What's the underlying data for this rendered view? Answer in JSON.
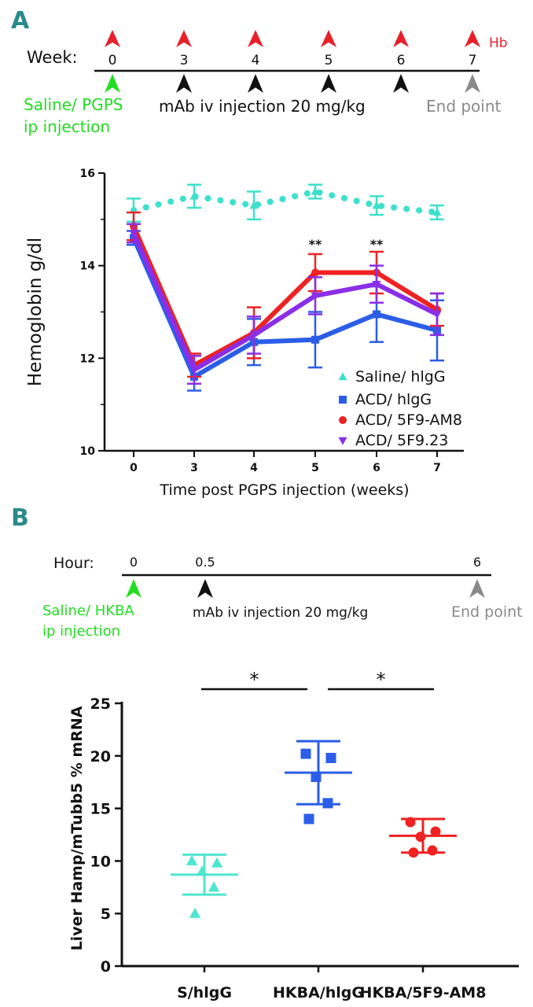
{
  "colors": {
    "panel_letter": "#2a8a8a",
    "hb_marker": "#e8202a",
    "saline": "#22dd22",
    "injection": "#111111",
    "end": "#8a8a8a",
    "saline_higg": "#3ee0cc",
    "acd_higg": "#2a5ee8",
    "acd_5f9_am8": "#ee2222",
    "acd_5f9_23": "#8a2ee8",
    "s_higg_dot": "#4fe6d0",
    "hkba_higg_dot": "#2a5ee8",
    "hkba_5f9_dot": "#ee2222"
  },
  "panel_a": {
    "letter": "A",
    "timeline": {
      "axis_label": "Week:",
      "ticks": [
        "0",
        "3",
        "4",
        "5",
        "6",
        "7"
      ],
      "hb_label": "Hb",
      "saline_label_1": "Saline/ PGPS",
      "saline_label_2": "ip injection",
      "mab_label": "mAb iv injection 20 mg/kg",
      "end_label": "End point"
    }
  },
  "panel_b": {
    "letter": "B",
    "timeline": {
      "axis_label": "Hour:",
      "ticks": [
        "0",
        "0.5",
        "6"
      ],
      "saline_label_1": "Saline/ HKBA",
      "saline_label_2": "ip injection",
      "mab_label": "mAb iv injection 20 mg/kg",
      "end_label": "End point"
    }
  },
  "chart_data": [
    {
      "type": "line",
      "title": "",
      "xlabel": "Time post PGPS injection (weeks)",
      "ylabel": "Hemoglobin g/dl",
      "x": [
        0,
        3,
        4,
        5,
        6,
        7
      ],
      "x_tick_labels": [
        "0",
        "3",
        "4",
        "5",
        "6",
        "7"
      ],
      "ylim": [
        10,
        16
      ],
      "y_ticks": [
        10,
        12,
        14,
        16
      ],
      "y_tick_labels": [
        "10",
        "12",
        "14",
        "16"
      ],
      "legend_position": "bottom-right",
      "series": [
        {
          "name": "Saline/ hIgG",
          "legend_label": "Saline/ hlgG",
          "marker": "triangle-up",
          "line": "dotted",
          "color_key": "saline_higg",
          "values": [
            15.2,
            15.5,
            15.3,
            15.6,
            15.3,
            15.15
          ],
          "errors": [
            0.25,
            0.25,
            0.3,
            0.15,
            0.2,
            0.15
          ]
        },
        {
          "name": "ACD/ hIgG",
          "legend_label": "ACD/ hlgG",
          "marker": "square",
          "line": "solid",
          "color_key": "acd_higg",
          "values": [
            14.6,
            11.6,
            12.35,
            12.4,
            12.95,
            12.6
          ],
          "errors": [
            0.15,
            0.3,
            0.5,
            0.6,
            0.6,
            0.65
          ]
        },
        {
          "name": "ACD/ 5F9-AM8",
          "legend_label": "ACD/ 5F9-AM8",
          "marker": "circle",
          "line": "solid",
          "color_key": "acd_5f9_am8",
          "values": [
            14.85,
            11.85,
            12.55,
            13.85,
            13.85,
            13.05
          ],
          "errors": [
            0.3,
            0.25,
            0.55,
            0.4,
            0.45,
            0.35
          ]
        },
        {
          "name": "ACD/ 5F9.23",
          "legend_label": "ACD/ 5F9.23",
          "marker": "triangle-down",
          "line": "solid",
          "color_key": "acd_5f9_23",
          "values": [
            14.7,
            11.75,
            12.5,
            13.35,
            13.6,
            12.95
          ],
          "errors": [
            0.2,
            0.3,
            0.4,
            0.4,
            0.4,
            0.45
          ]
        }
      ],
      "annotations": [
        {
          "text": "**",
          "x": 5
        },
        {
          "text": "**",
          "x": 6
        }
      ]
    },
    {
      "type": "scatter",
      "title": "",
      "xlabel": "",
      "ylabel": "Liver Hamp/mTubb5 % mRNA",
      "categories": [
        "S/hIgG",
        "HKBA/hIgG",
        "HKBA/5F9-AM8"
      ],
      "category_labels": [
        "S/hlgG",
        "HKBA/hlgG",
        "HKBA/5F9-AM8"
      ],
      "ylim": [
        0,
        25
      ],
      "y_ticks": [
        0,
        5,
        10,
        15,
        20,
        25
      ],
      "y_tick_labels": [
        "0",
        "5",
        "10",
        "15",
        "20",
        "25"
      ],
      "groups": [
        {
          "name": "S/hIgG",
          "marker": "triangle-up",
          "color_key": "s_higg_dot",
          "points": [
            10.0,
            9.8,
            9.0,
            7.5,
            5.0
          ],
          "mean": 8.7,
          "sd": 1.9
        },
        {
          "name": "HKBA/hIgG",
          "marker": "square",
          "color_key": "hkba_higg_dot",
          "points": [
            20.2,
            19.8,
            18.0,
            15.5,
            14.0
          ],
          "mean": 18.4,
          "sd": 3.0
        },
        {
          "name": "HKBA/5F9-AM8",
          "marker": "circle",
          "color_key": "hkba_5f9_dot",
          "points": [
            13.7,
            12.8,
            12.3,
            11.0,
            10.8
          ],
          "mean": 12.4,
          "sd": 1.6
        }
      ],
      "significance": [
        {
          "from": 0,
          "to": 1,
          "label": "*"
        },
        {
          "from": 1,
          "to": 2,
          "label": "*"
        }
      ]
    }
  ]
}
